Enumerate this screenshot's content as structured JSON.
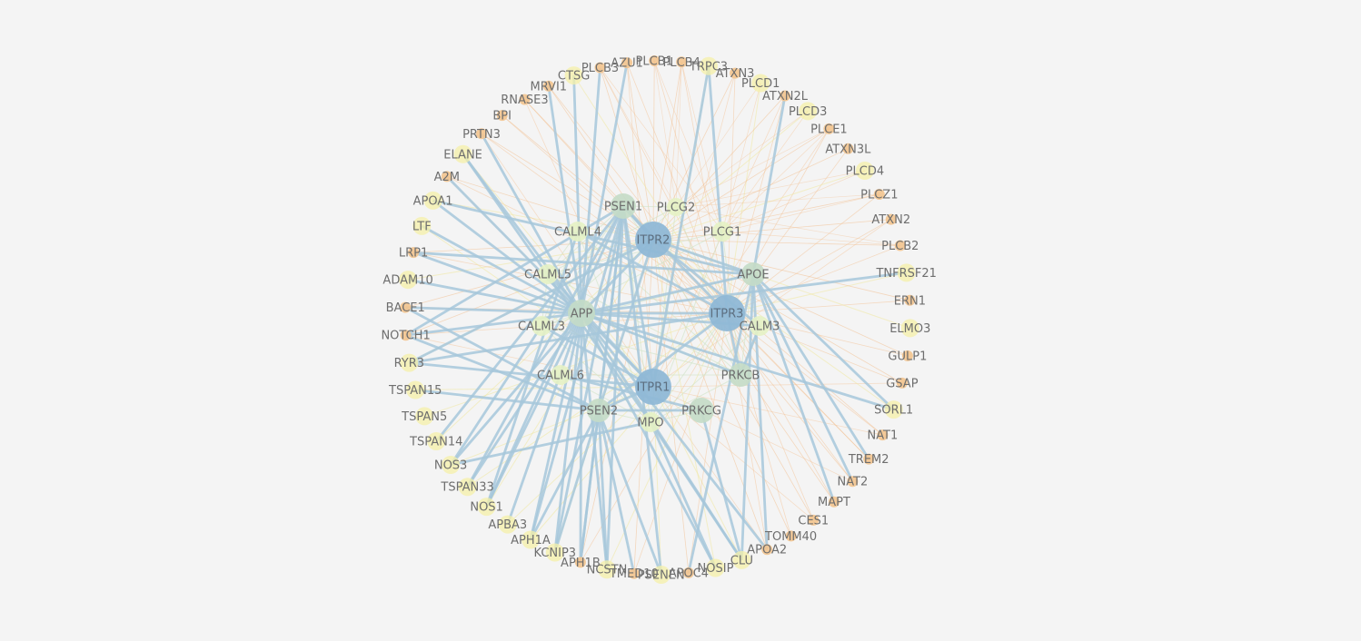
{
  "colors": {
    "background": "#f4f4f4",
    "hub": "#8fb8d6",
    "mid": "#c4dcc6",
    "light": "#e6f2c4",
    "yellow": "#f6f0a8",
    "orange": "#f3c48e",
    "edge_blue": "#a6c7da",
    "edge_orange": "#f3bf8f",
    "edge_yellow": "#f0e7a0",
    "edge_green": "#cfe3c4"
  },
  "network": {
    "hubs": [
      "ITPR1",
      "ITPR2",
      "ITPR3"
    ],
    "inner": [
      "PSEN1",
      "PLCG2",
      "CALML4",
      "PLCG1",
      "CALML5",
      "APOE",
      "APP",
      "CALML3",
      "CALM3",
      "CALML6",
      "PRKCB",
      "PSEN2",
      "PRKCG",
      "MPO"
    ],
    "ring": [
      "AZU1",
      "PLCB1",
      "PLCB4",
      "TRPC3",
      "ATXN3",
      "PLCD1",
      "ATXN2L",
      "PLCD3",
      "PLCE1",
      "ATXN3L",
      "PLCD4",
      "PLCZ1",
      "ATXN2",
      "PLCB2",
      "TNFRSF21",
      "ERN1",
      "ELMO3",
      "GULP1",
      "GSAP",
      "SORL1",
      "NAT1",
      "TREM2",
      "NAT2",
      "MAPT",
      "CES1",
      "TOMM40",
      "APOA2",
      "CLU",
      "NOSIP",
      "APOC4",
      "PSENEN",
      "TMED10",
      "NCSTN",
      "APH1B",
      "KCNIP3",
      "APH1A",
      "APBA3",
      "NOS1",
      "TSPAN33",
      "NOS3",
      "TSPAN14",
      "TSPAN5",
      "TSPAN15",
      "RYR3",
      "NOTCH1",
      "BACE1",
      "ADAM10",
      "LRP1",
      "LTF",
      "APOA1",
      "A2M",
      "ELANE",
      "PRTN3",
      "BPI",
      "RNASE3",
      "MRVI1",
      "CTSG",
      "PLCB3"
    ],
    "orange_nodes": [
      "AZU1",
      "PLCB1",
      "PLCB4",
      "ATXN3",
      "ATXN2L",
      "PLCE1",
      "ATXN3L",
      "PLCZ1",
      "ATXN2",
      "PLCB2",
      "ERN1",
      "GULP1",
      "GSAP",
      "NAT1",
      "TREM2",
      "NAT2",
      "MAPT",
      "CES1",
      "TOMM40",
      "APOA2",
      "APOC4",
      "TMED10",
      "APH1B",
      "NOTCH1",
      "BACE1",
      "LRP1",
      "A2M",
      "PRTN3",
      "BPI",
      "RNASE3",
      "MRVI1",
      "PLCB3"
    ]
  }
}
